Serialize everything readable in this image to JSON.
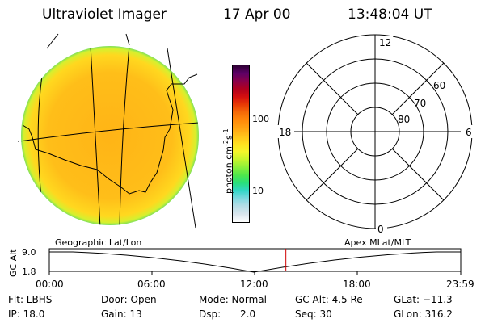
{
  "header": {
    "instrument": "Ultraviolet Imager",
    "date": "17 Apr 00",
    "time": "13:48:04 UT"
  },
  "colorbar": {
    "unit": "photon cm",
    "unit_exp1": "-2",
    "unit_s": "s",
    "unit_exp2": "-1",
    "tick_high": "100",
    "tick_low": "10",
    "colors": [
      "#ffffff",
      "#d9e6ee",
      "#b8dde6",
      "#7fd8e0",
      "#33d6c8",
      "#29e07a",
      "#4fe84a",
      "#8cf03a",
      "#c8f52c",
      "#f5f52a",
      "#ffe01f",
      "#ffc21a",
      "#ffa312",
      "#ff8a0a",
      "#f56a08",
      "#e83a05",
      "#d40f0f",
      "#b0001f",
      "#8a004a",
      "#5c0066",
      "#2d0033"
    ]
  },
  "polar": {
    "mlt_top": "12",
    "mlt_left": "18",
    "mlt_right": "6",
    "mlt_bottom": "0",
    "lat_60": "60",
    "lat_70": "70",
    "lat_80": "80"
  },
  "timeline": {
    "left_label": "Geographic Lat/Lon",
    "right_label": "Apex MLat/MLT",
    "y_axis": "GC Alt",
    "y_high": "9.0",
    "y_low": "1.8",
    "ticks": [
      "00:00",
      "06:00",
      "12:00",
      "18:00",
      "23:59"
    ],
    "current_time_fraction": 0.575
  },
  "info": {
    "flt": "Flt: LBHS",
    "door": "Door: Open",
    "mode": "Mode: Normal",
    "gc_alt": "GC Alt: 4.5 Re",
    "glat": "GLat: −11.3",
    "ip": "IP: 18.0",
    "gain": "Gain: 13",
    "dsp_label": "Dsp:",
    "dsp_value": "2.0",
    "seq": "Seq: 30",
    "glon": "GLon: 316.2"
  }
}
